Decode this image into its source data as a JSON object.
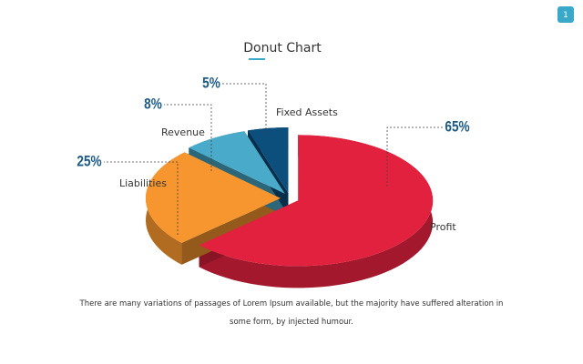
{
  "page_number": "1",
  "chart_data": {
    "type": "pie",
    "title": "Donut Chart",
    "categories": [
      "Profit",
      "Liabilities",
      "Revenue",
      "Fixed Assets"
    ],
    "values": [
      65,
      25,
      8,
      5
    ],
    "value_labels": [
      "65%",
      "25%",
      "8%",
      "5%"
    ],
    "colors": [
      "#e2213f",
      "#f7962e",
      "#4aaac9",
      "#0c4f7d"
    ]
  },
  "caption": "There are many variations of passages of Lorem Ipsum available, but the majority have suffered alteration in some form, by injected humour."
}
